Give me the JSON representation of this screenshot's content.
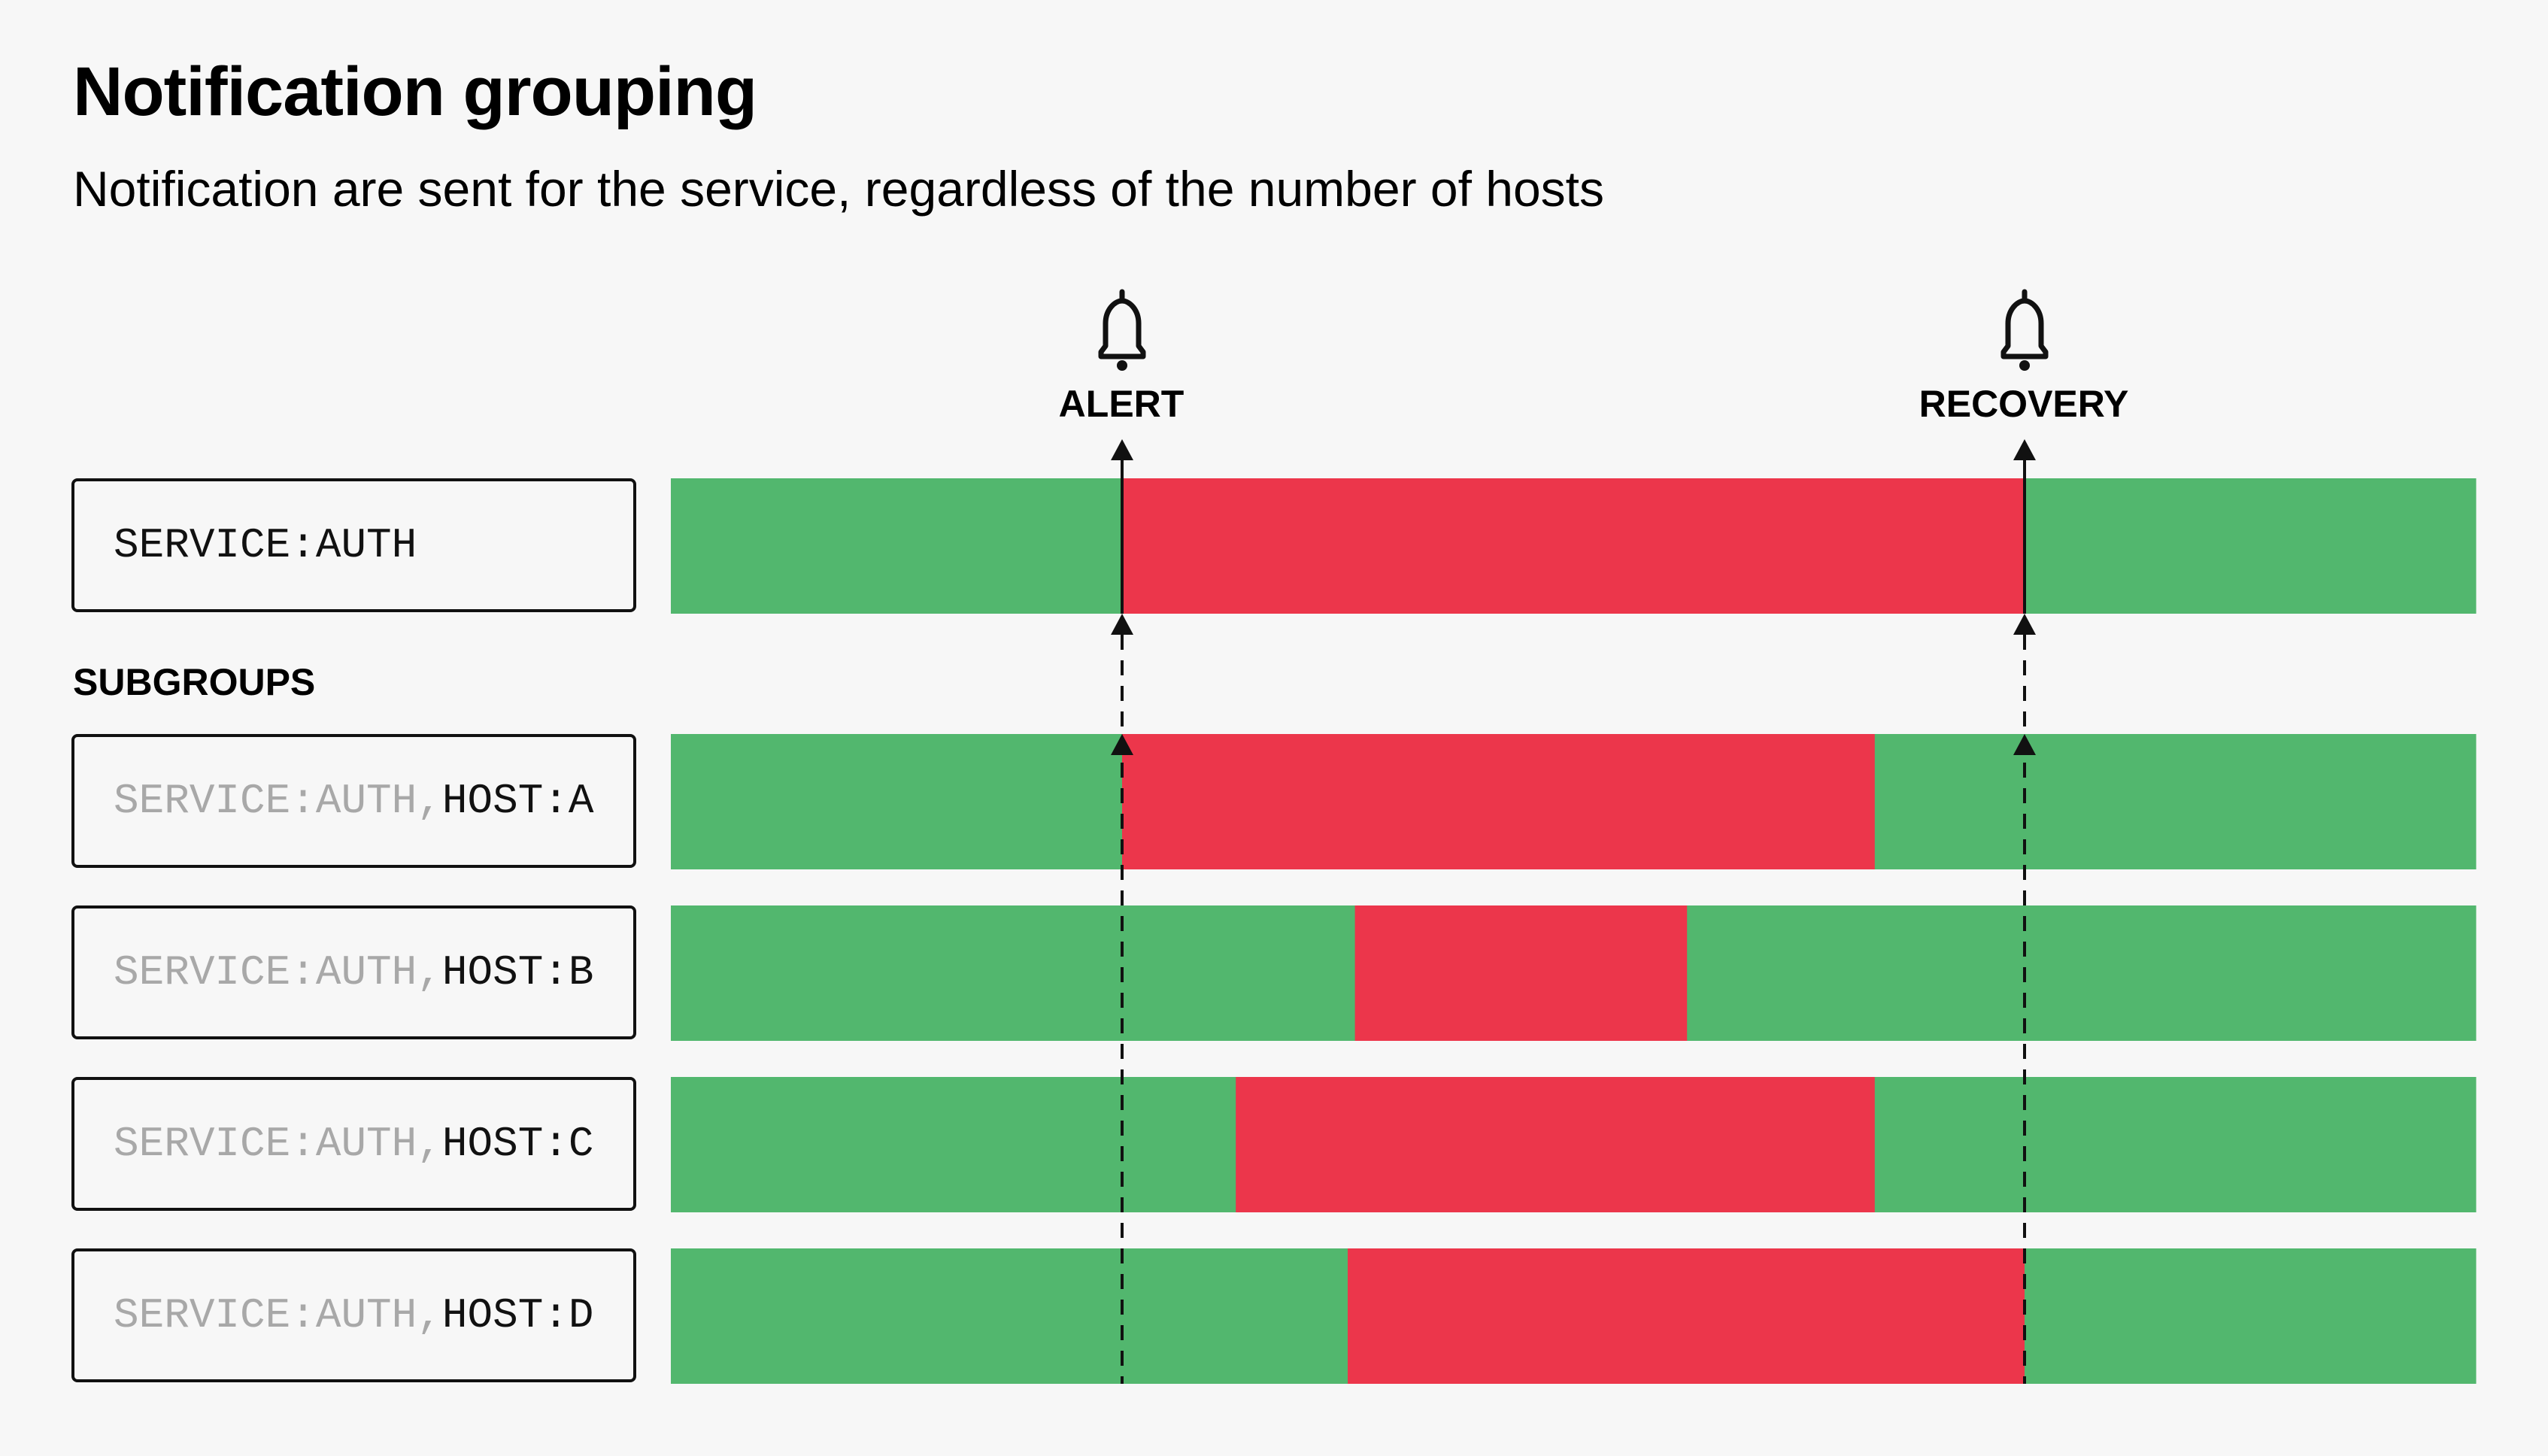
{
  "header": {
    "title": "Notification grouping",
    "subtitle": "Notification are sent for the service, regardless of the number of hosts"
  },
  "events": {
    "alert": {
      "label": "ALERT",
      "icon": "bell-icon",
      "position": 0.25
    },
    "recovery": {
      "label": "RECOVERY",
      "icon": "bell-icon",
      "position": 0.75
    }
  },
  "service": {
    "prefix": "SERVICE:AUTH",
    "host": "",
    "segments": [
      [
        0.0,
        0.25,
        "ok"
      ],
      [
        0.25,
        0.75,
        "alert"
      ],
      [
        0.75,
        1.0,
        "ok"
      ]
    ]
  },
  "subgroups_label": "SUBGROUPS",
  "subgroups": [
    {
      "prefix": "SERVICE:AUTH,",
      "host": "HOST:A",
      "segments": [
        [
          0.0,
          0.25,
          "ok"
        ],
        [
          0.25,
          0.667,
          "alert"
        ],
        [
          0.667,
          1.0,
          "ok"
        ]
      ]
    },
    {
      "prefix": "SERVICE:AUTH,",
      "host": "HOST:B",
      "segments": [
        [
          0.0,
          0.379,
          "ok"
        ],
        [
          0.379,
          0.563,
          "alert"
        ],
        [
          0.563,
          1.0,
          "ok"
        ]
      ]
    },
    {
      "prefix": "SERVICE:AUTH,",
      "host": "HOST:C",
      "segments": [
        [
          0.0,
          0.313,
          "ok"
        ],
        [
          0.313,
          0.667,
          "alert"
        ],
        [
          0.667,
          1.0,
          "ok"
        ]
      ]
    },
    {
      "prefix": "SERVICE:AUTH,",
      "host": "HOST:D",
      "segments": [
        [
          0.0,
          0.375,
          "ok"
        ],
        [
          0.375,
          0.75,
          "alert"
        ],
        [
          0.75,
          1.0,
          "ok"
        ]
      ]
    }
  ],
  "colors": {
    "ok": "#52b76e",
    "alert": "#ec364b",
    "background": "#f7f7f7",
    "line": "#111111",
    "dim_text": "#a8a8a8"
  }
}
